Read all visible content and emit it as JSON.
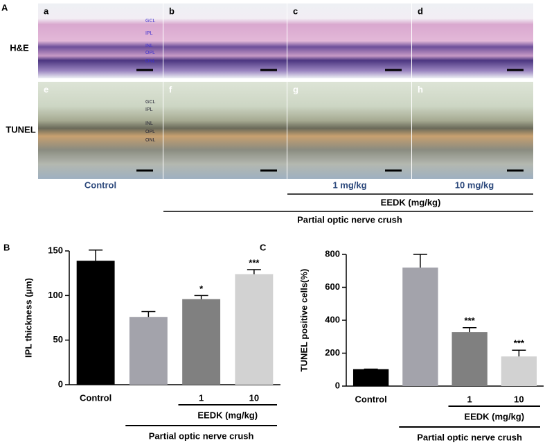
{
  "panel_a": {
    "label": "A",
    "rows": [
      "H&E",
      "TUNEL"
    ],
    "panels": [
      "a",
      "b",
      "c",
      "d",
      "e",
      "f",
      "g",
      "h"
    ],
    "layers": [
      "GCL",
      "IPL",
      "INL",
      "OPL",
      "ONL"
    ],
    "column_labels": [
      "Control",
      "1 mg/kg",
      "10 mg/kg"
    ],
    "group_labels": [
      "EEDK (mg/kg)",
      "Partial optic nerve crush"
    ]
  },
  "chart_data": [
    {
      "type": "bar",
      "label": "B",
      "y_label": "IPL thickness (µm)",
      "categories": [
        "Control",
        null,
        "1",
        "10"
      ],
      "values": [
        139,
        76,
        96,
        124
      ],
      "errors": [
        12,
        6,
        4,
        5
      ],
      "value_annotations": [
        null,
        null,
        "*",
        "***"
      ],
      "colors": [
        "#000000",
        "#a3a3ab",
        "#808080",
        "#d2d2d2"
      ],
      "ylim": [
        0,
        150
      ],
      "yticks": [
        0,
        50,
        100,
        150
      ],
      "group_labels": [
        "EEDK (mg/kg)",
        "Partial optic nerve crush"
      ]
    },
    {
      "type": "bar",
      "label": "C",
      "y_label": "TUNEL positive cells(%)",
      "categories": [
        "Control",
        null,
        "1",
        "10"
      ],
      "values": [
        103,
        720,
        328,
        180
      ],
      "errors": [
        0,
        80,
        27,
        38
      ],
      "value_annotations": [
        null,
        null,
        "***",
        "***"
      ],
      "colors": [
        "#000000",
        "#a3a3ab",
        "#808080",
        "#d2d2d2"
      ],
      "ylim": [
        0,
        800
      ],
      "yticks": [
        0,
        200,
        400,
        600,
        800
      ],
      "group_labels": [
        "EEDK (mg/kg)",
        "Partial optic nerve crush"
      ]
    }
  ]
}
